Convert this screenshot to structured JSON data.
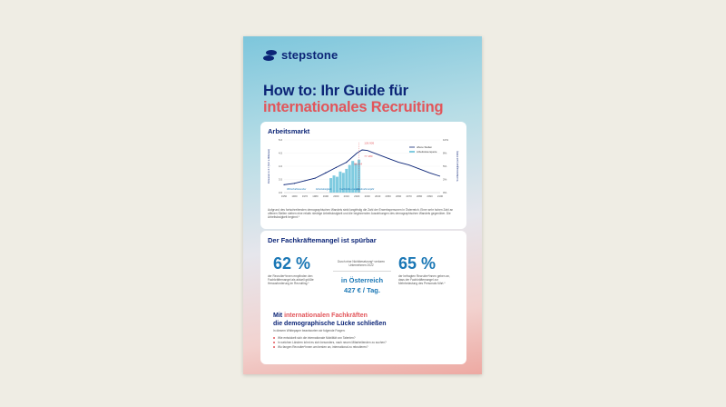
{
  "brand": {
    "name": "stepstone",
    "color": "#0c2577"
  },
  "title": {
    "line1": "How to: Ihr Guide für",
    "line2": "internationales Recruiting"
  },
  "arbeitsmarkt": {
    "heading": "Arbeitsmarkt",
    "footnote": "Aufgrund des fortschreitenden demographischen Wandels sinkt langfristig die Zahl der Erwerbspersonen in Österreich. Einer sehr hohen Zahl an offenen Stellen stehen eine relativ niedrige Arbeitslosigkeit und die beginnenden Auswirkungen des demographischen Wandels gegenüber. Die Arbeitslosigkeit beginnt.*"
  },
  "chart_data": {
    "type": "line",
    "ylabel": "Personen in 4.7 (% 0 a Millionen)",
    "ylabel_right": "% Arbeitslosigkeit (seit 1994)",
    "y_ticks": [
      "3.0",
      "3.5",
      "4.0",
      "4.5",
      "5.0"
    ],
    "y_ticks_right": [
      "0%",
      "2%",
      "5%",
      "8%",
      "10%"
    ],
    "ylim": [
      3.0,
      5.0
    ],
    "x_ticks": [
      "1950",
      "1960",
      "1970",
      "1980",
      "1990",
      "2000",
      "2010",
      "2020",
      "2030",
      "2040",
      "2050",
      "2060",
      "2070",
      "2080",
      "2090",
      "2100"
    ],
    "xlim": [
      1950,
      2100
    ],
    "series": [
      {
        "name": "offene Stellen",
        "type": "line",
        "x": [
          1950,
          1960,
          1970,
          1980,
          1990,
          2000,
          2010,
          2020,
          2025,
          2030,
          2040,
          2050,
          2060,
          2070,
          2080,
          2090,
          2100
        ],
        "values": [
          3.3,
          3.35,
          3.45,
          3.55,
          3.75,
          3.95,
          4.15,
          4.5,
          4.62,
          4.6,
          4.45,
          4.3,
          4.15,
          4.05,
          3.9,
          3.75,
          3.62
        ]
      },
      {
        "name": "Arbeitslosenquote",
        "type": "bar",
        "x": [
          1995,
          1998,
          2001,
          2004,
          2007,
          2010,
          2013,
          2016,
          2019,
          2022
        ],
        "values": [
          3.55,
          3.65,
          3.6,
          3.8,
          3.75,
          3.9,
          4.05,
          4.2,
          4.1,
          4.25
        ]
      }
    ],
    "annotations": [
      "126.905",
      "77.180",
      "58.134"
    ],
    "region_labels": [
      "Wirtschaftswunder",
      "Arbeitslosigkeit",
      "Fachkräfte-mangel",
      "Arbeitnehmerjahr"
    ],
    "legend": "top-right",
    "colors": {
      "line": "#0c2577",
      "bars": "#7fcbe0",
      "marker": "#e2555a"
    }
  },
  "fachkraefte": {
    "heading": "Der Fachkräftemangel ist spürbar",
    "stat_left": "62 %",
    "stat_left_desc": "der Recruiter*innen empfinden den Fachkräftemangel als aktuell größte Herausforderung im Recruiting.*",
    "mid_note": "Durch eine Nichtbesetzung* verloren Unternehmen 2022",
    "mid_value_1": "in Österreich",
    "mid_value_2": "427 € / Tag.",
    "stat_right": "65 %",
    "stat_right_desc": "der befragten Recruiter*innen geben an, dass der Fachkräftemangel zur Mehrbelastung des Personals führt.*"
  },
  "international": {
    "line1_prefix": "Mit",
    "line1_accent": "internationalen Fachkräften",
    "line2": "die demographische Lücke schließen",
    "intro": "In diesem Whitepaper beantworten wir folgende Fragen:",
    "questions": [
      "Wie entwickelt sich die internationale Mobilität von Talenten?",
      "In welchen Ländern lohnt es sich besonders, nach neuen Mitarbeitenden zu suchen?",
      "Wo fangen Recruiter*innen am besten an, international zu rekrutieren?"
    ]
  },
  "colors": {
    "accent": "#e2555a",
    "stat": "#1a77b5"
  }
}
